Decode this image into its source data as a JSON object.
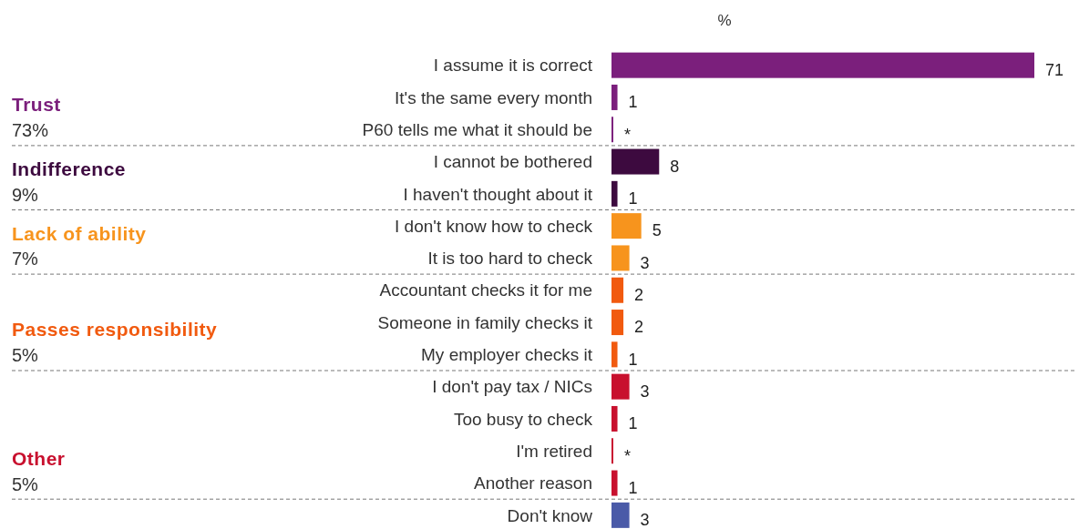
{
  "chart_data": {
    "type": "bar",
    "orientation": "horizontal",
    "xlabel": "%",
    "categories": [
      "I assume it is correct",
      "It's the same every month",
      "P60 tells me what it should be",
      "I cannot be bothered",
      "I haven't thought about it",
      "I don't know how to check",
      "It is too hard to check",
      "Accountant checks it for me",
      "Someone in family checks it",
      "My employer checks it",
      "I don't pay tax / NICs",
      "Too busy to check",
      "I'm retired",
      "Another reason",
      "Don't know"
    ],
    "values": [
      71,
      1,
      0.3,
      8,
      1,
      5,
      3,
      2,
      2,
      1,
      3,
      1,
      0.3,
      1,
      3
    ],
    "value_labels": [
      "71",
      "1",
      "*",
      "8",
      "1",
      "5",
      "3",
      "2",
      "2",
      "1",
      "3",
      "1",
      "*",
      "1",
      "3"
    ],
    "colors": [
      "#7b1f7c",
      "#7b1f7c",
      "#7b1f7c",
      "#3d0a3f",
      "#3d0a3f",
      "#f7941d",
      "#f7941d",
      "#f15a0f",
      "#f15a0f",
      "#f15a0f",
      "#c8102e",
      "#c8102e",
      "#c8102e",
      "#c8102e",
      "#4a5aa8"
    ],
    "annotations": [
      "Trust",
      "73%",
      "Indifference",
      "9%",
      "Lack of ability",
      "7%",
      "Passes responsibility",
      "5%",
      "Other",
      "5%"
    ]
  }
}
